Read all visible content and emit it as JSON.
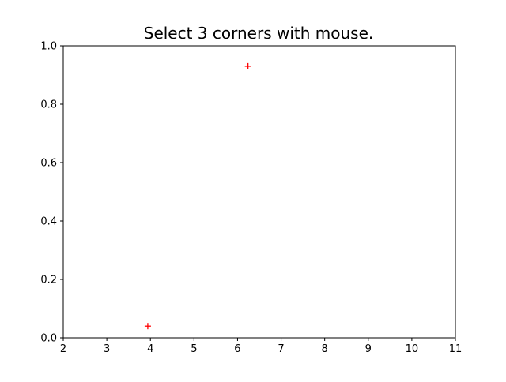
{
  "colors": {
    "background": "#ffffff",
    "axes": "#000000",
    "marker": "#ff0000"
  },
  "chart_data": {
    "type": "scatter",
    "title": "Select 3 corners with mouse.",
    "xlabel": "",
    "ylabel": "",
    "xlim": [
      2,
      11
    ],
    "ylim": [
      0.0,
      1.0
    ],
    "x_ticks": [
      2,
      3,
      4,
      5,
      6,
      7,
      8,
      9,
      10,
      11
    ],
    "x_tick_labels": [
      "2",
      "3",
      "4",
      "5",
      "6",
      "7",
      "8",
      "9",
      "10",
      "11"
    ],
    "y_ticks": [
      0.0,
      0.2,
      0.4,
      0.6,
      0.8,
      1.0
    ],
    "y_tick_labels": [
      "0.0",
      "0.2",
      "0.4",
      "0.6",
      "0.8",
      "1.0"
    ],
    "grid": false,
    "marker": "plus",
    "series": [
      {
        "color": "#ff0000",
        "points": [
          {
            "x": 3.94,
            "y": 0.04
          },
          {
            "x": 6.24,
            "y": 0.93
          }
        ]
      }
    ]
  }
}
